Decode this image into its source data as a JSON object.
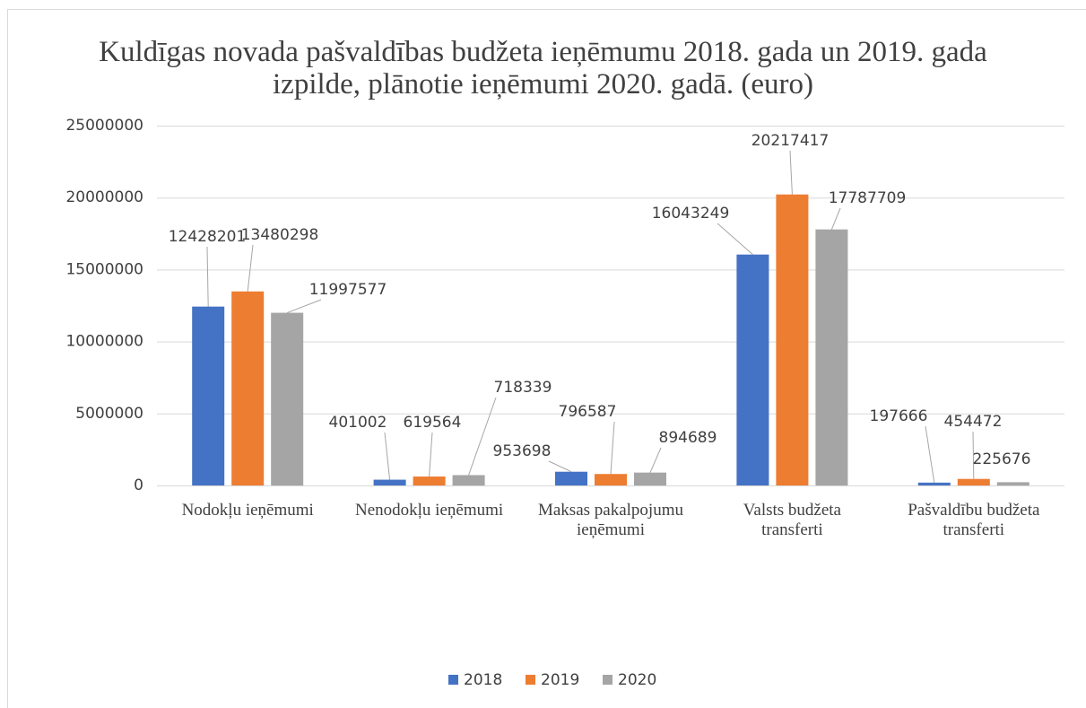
{
  "chart_data": {
    "type": "bar",
    "title": "Kuldīgas novada pašvaldības budžeta ieņēmumu  2018. gada un 2019. gada izpilde, plānotie ieņēmumi 2020. gadā. (euro)",
    "categories": [
      "Nodokļu ieņēmumi",
      "Nenodokļu ieņēmumi",
      "Maksas pakalpojumu ieņēmumi",
      "Valsts budžeta transferti",
      "Pašvaldību budžeta transferti"
    ],
    "series": [
      {
        "name": "2018",
        "color": "#4472c4",
        "values": [
          12428201,
          401002,
          953698,
          16043249,
          197666
        ]
      },
      {
        "name": "2019",
        "color": "#ed7d31",
        "values": [
          13480298,
          619564,
          796587,
          20217417,
          454472
        ]
      },
      {
        "name": "2020",
        "color": "#a5a5a5",
        "values": [
          11997577,
          718339,
          894689,
          17787709,
          225676
        ]
      }
    ],
    "ylim": [
      0,
      25000000
    ],
    "yticks": [
      0,
      5000000,
      10000000,
      15000000,
      20000000,
      25000000
    ],
    "grid": true,
    "legend": "bottom"
  }
}
